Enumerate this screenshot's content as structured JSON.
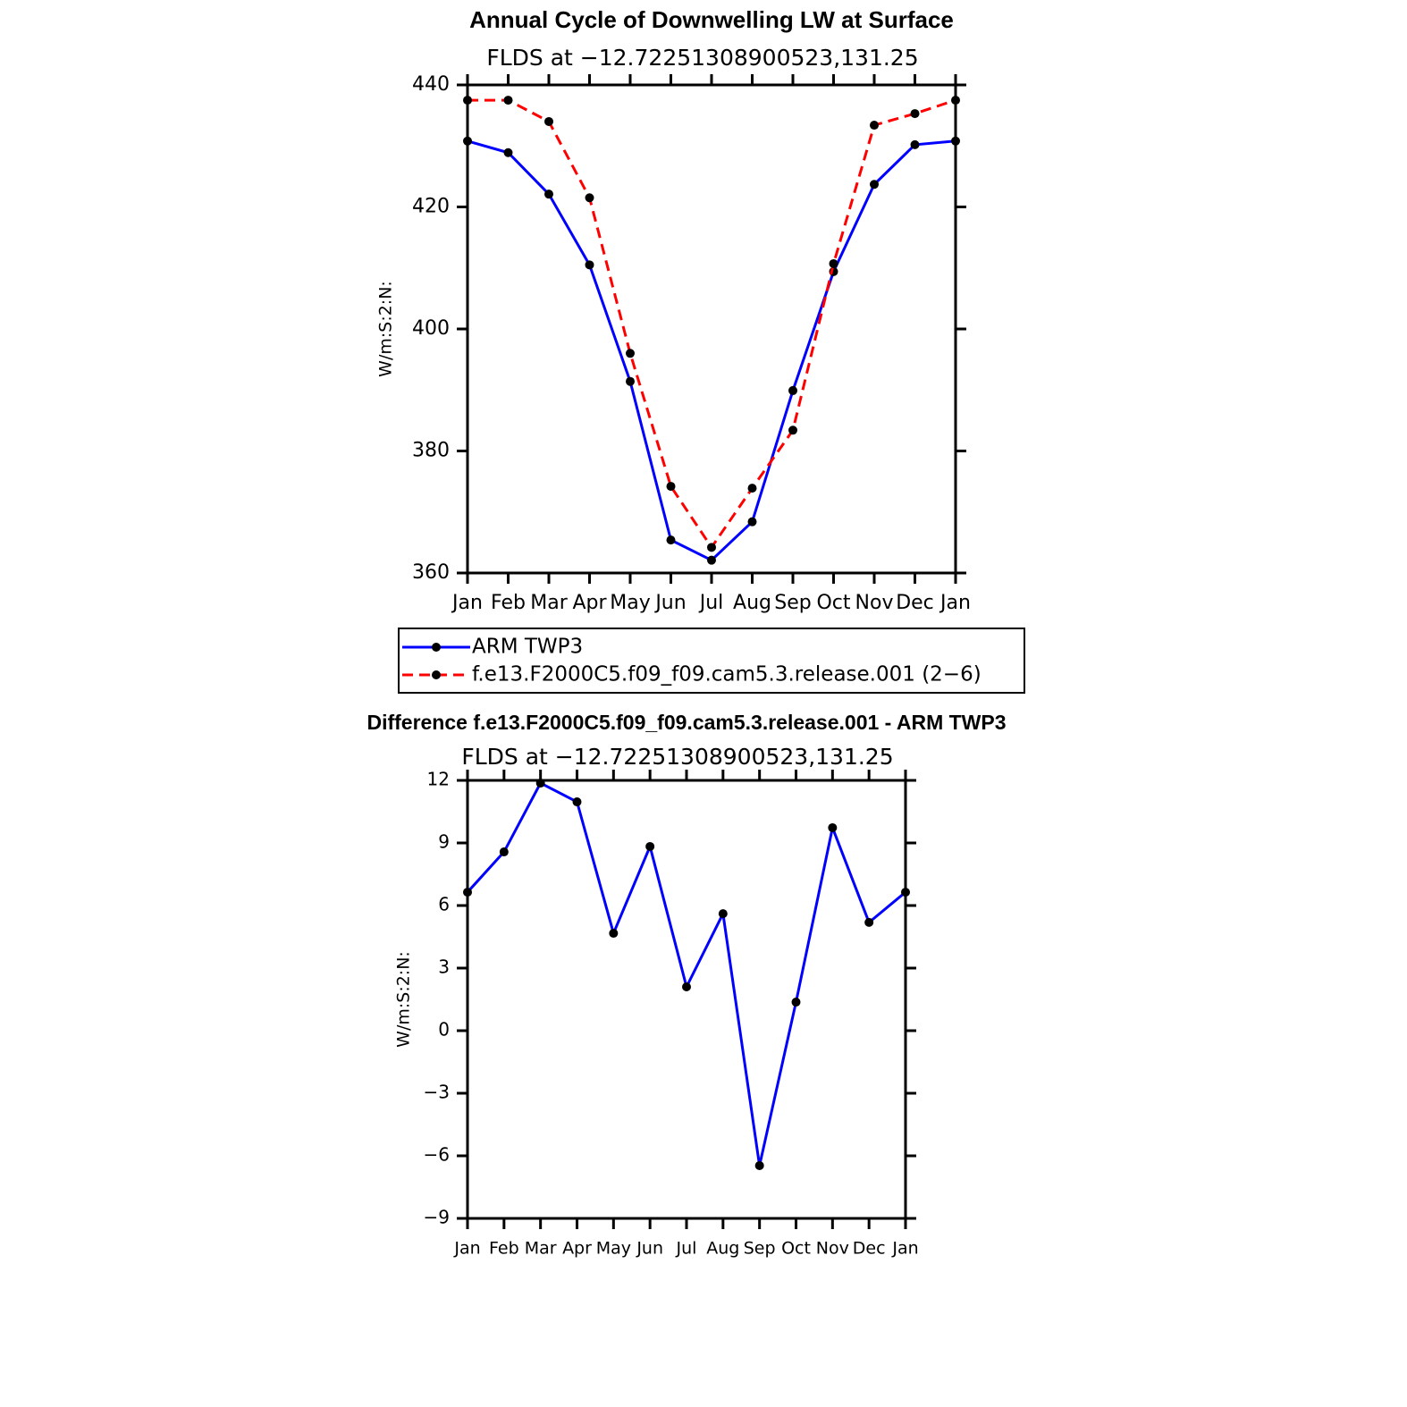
{
  "chart_data": [
    {
      "type": "line",
      "title": "Annual Cycle of Downwelling LW at Surface",
      "subtitle": "FLDS at −12.72251308900523,131.25",
      "ylabel": "W/m:S:2:N:",
      "categories": [
        "Jan",
        "Feb",
        "Mar",
        "Apr",
        "May",
        "Jun",
        "Jul",
        "Aug",
        "Sep",
        "Oct",
        "Nov",
        "Dec",
        "Jan"
      ],
      "series": [
        {
          "name": "ARM TWP3",
          "color": "#0000ff",
          "line_style": "solid",
          "values": [
            430.8,
            428.9,
            422.1,
            410.5,
            391.4,
            365.4,
            362.1,
            368.4,
            389.9,
            409.4,
            423.7,
            430.2,
            430.8
          ]
        },
        {
          "name": "f.e13.F2000C5.f09_f09.cam5.3.release.001 (2−6)",
          "color": "#ff0000",
          "line_style": "dashed",
          "values": [
            437.5,
            437.5,
            434.0,
            421.5,
            396.0,
            374.2,
            364.2,
            373.9,
            383.4,
            410.7,
            433.4,
            435.3,
            437.5
          ]
        }
      ],
      "ylim": [
        360,
        440
      ],
      "yticks": [
        360,
        380,
        400,
        420,
        440
      ],
      "marker_color": "#000000",
      "legend": "bottom"
    },
    {
      "type": "line",
      "title": "Difference f.e13.F2000C5.f09_f09.cam5.3.release.001 - ARM TWP3",
      "subtitle": "FLDS at −12.72251308900523,131.25",
      "ylabel": "W/m:S:2:N:",
      "categories": [
        "Jan",
        "Feb",
        "Mar",
        "Apr",
        "May",
        "Jun",
        "Jul",
        "Aug",
        "Sep",
        "Oct",
        "Nov",
        "Dec",
        "Jan"
      ],
      "color": "#0000ff",
      "values": [
        6.64,
        8.57,
        11.87,
        10.97,
        4.67,
        8.83,
        2.1,
        5.61,
        -6.47,
        1.37,
        9.73,
        5.19,
        6.64
      ],
      "ylim": [
        -9,
        12
      ],
      "yticks": [
        {
          "value": -9,
          "label": "−9"
        },
        {
          "value": -6,
          "label": "−6"
        },
        {
          "value": -3,
          "label": "−3"
        },
        0,
        3,
        6,
        9,
        12
      ],
      "marker_color": "#000000"
    }
  ]
}
